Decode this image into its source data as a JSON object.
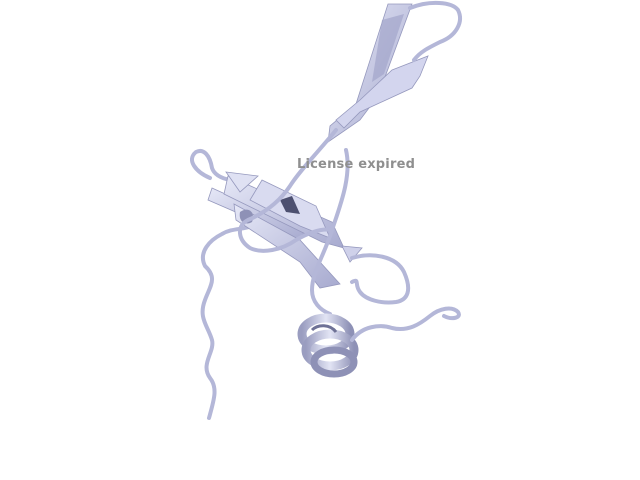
{
  "viewer": {
    "background": "#ffffff",
    "watermark": "License expired",
    "watermark_color": "#8f8f8f"
  },
  "structure": {
    "style": "ribbon cartoon",
    "color": "#c3c6e4",
    "shade_color": "#8e91b6",
    "elements": [
      "beta-hairpin",
      "beta-sheet",
      "alpha-helix",
      "coil"
    ]
  }
}
